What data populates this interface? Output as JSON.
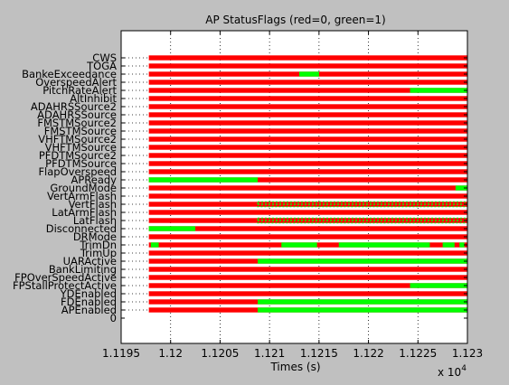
{
  "figure": {
    "background": "#c0c0c0"
  },
  "chart_data": {
    "type": "timeline",
    "title": "AP StatusFlags (red=0, green=1)",
    "xlabel": "Times (s)",
    "x_exponent_label": "x 10",
    "x_exponent_power": "4",
    "xlim": [
      1.1195,
      1.123
    ],
    "x_ticks": [
      1.1195,
      1.12,
      1.1205,
      1.121,
      1.1215,
      1.122,
      1.1225,
      1.123
    ],
    "x_tick_labels": [
      "1.1195",
      "1.12",
      "1.1205",
      "1.121",
      "1.1215",
      "1.122",
      "1.1225",
      "1.123"
    ],
    "grid": true,
    "colors": {
      "false": "#ff0000",
      "true": "#00ff00",
      "axes_bg": "#ffffff"
    },
    "data_start": 1.11978,
    "y_labels": [
      "CWS",
      "TOGA",
      "BankeExceedance",
      "OverspeedAlert",
      "PitchRateAlert",
      "AltInhibit",
      "ADAHRSSource2",
      "ADAHRSSource",
      "FMSTMSource2",
      "FMSTMSource",
      "VHFTMSource2",
      "VHFTMSource",
      "PFDTMSource2",
      "PFDTMSource",
      "FlapOverspeed",
      "APReady",
      "GroundMode",
      "VertArmFlash",
      "VertFlash",
      "LatArmFlash",
      "LatFlash",
      "Disconnected",
      "DRMode",
      "TrimDn",
      "TrimUp",
      "UARActive",
      "BankLimiting",
      "FPOverSpeedActive",
      "FPStallProtectActive",
      "YDEnabled",
      "FDEnabled",
      "APEnabled",
      "0"
    ],
    "series": [
      {
        "name": "CWS",
        "on": []
      },
      {
        "name": "TOGA",
        "on": []
      },
      {
        "name": "BankeExceedance",
        "on": [
          [
            1.1213,
            1.1215
          ]
        ]
      },
      {
        "name": "OverspeedAlert",
        "on": []
      },
      {
        "name": "PitchRateAlert",
        "on": [
          [
            1.12242,
            1.123
          ]
        ]
      },
      {
        "name": "AltInhibit",
        "on": []
      },
      {
        "name": "ADAHRSSource2",
        "on": []
      },
      {
        "name": "ADAHRSSource",
        "on": []
      },
      {
        "name": "FMSTMSource2",
        "on": []
      },
      {
        "name": "FMSTMSource",
        "on": []
      },
      {
        "name": "VHFTMSource2",
        "on": []
      },
      {
        "name": "VHFTMSource",
        "on": []
      },
      {
        "name": "PFDTMSource2",
        "on": []
      },
      {
        "name": "PFDTMSource",
        "on": []
      },
      {
        "name": "FlapOverspeed",
        "on": []
      },
      {
        "name": "APReady",
        "on": [
          [
            1.11978,
            1.12088
          ]
        ]
      },
      {
        "name": "GroundMode",
        "on": [
          [
            1.12288,
            1.123
          ]
        ]
      },
      {
        "name": "VertArmFlash",
        "on": []
      },
      {
        "name": "VertFlash",
        "on": [
          [
            1.12088,
            1.123
          ]
        ],
        "style": "flash"
      },
      {
        "name": "LatArmFlash",
        "on": []
      },
      {
        "name": "LatFlash",
        "on": [
          [
            1.12088,
            1.123
          ]
        ],
        "style": "flash"
      },
      {
        "name": "Disconnected",
        "on": [
          [
            1.11978,
            1.12025
          ]
        ]
      },
      {
        "name": "DRMode",
        "on": []
      },
      {
        "name": "TrimDn",
        "on": [
          [
            1.1198,
            1.11988
          ],
          [
            1.12112,
            1.12148
          ],
          [
            1.1217,
            1.12262
          ],
          [
            1.12275,
            1.12287
          ],
          [
            1.12292,
            1.12297
          ]
        ]
      },
      {
        "name": "TrimUp",
        "on": []
      },
      {
        "name": "UARActive",
        "on": [
          [
            1.12088,
            1.123
          ]
        ]
      },
      {
        "name": "BankLimiting",
        "on": []
      },
      {
        "name": "FPOverSpeedActive",
        "on": []
      },
      {
        "name": "FPStallProtectActive",
        "on": [
          [
            1.12242,
            1.123
          ]
        ]
      },
      {
        "name": "YDEnabled",
        "on": []
      },
      {
        "name": "FDEnabled",
        "on": [
          [
            1.12088,
            1.123
          ]
        ]
      },
      {
        "name": "APEnabled",
        "on": [
          [
            1.12088,
            1.123
          ]
        ]
      }
    ]
  }
}
